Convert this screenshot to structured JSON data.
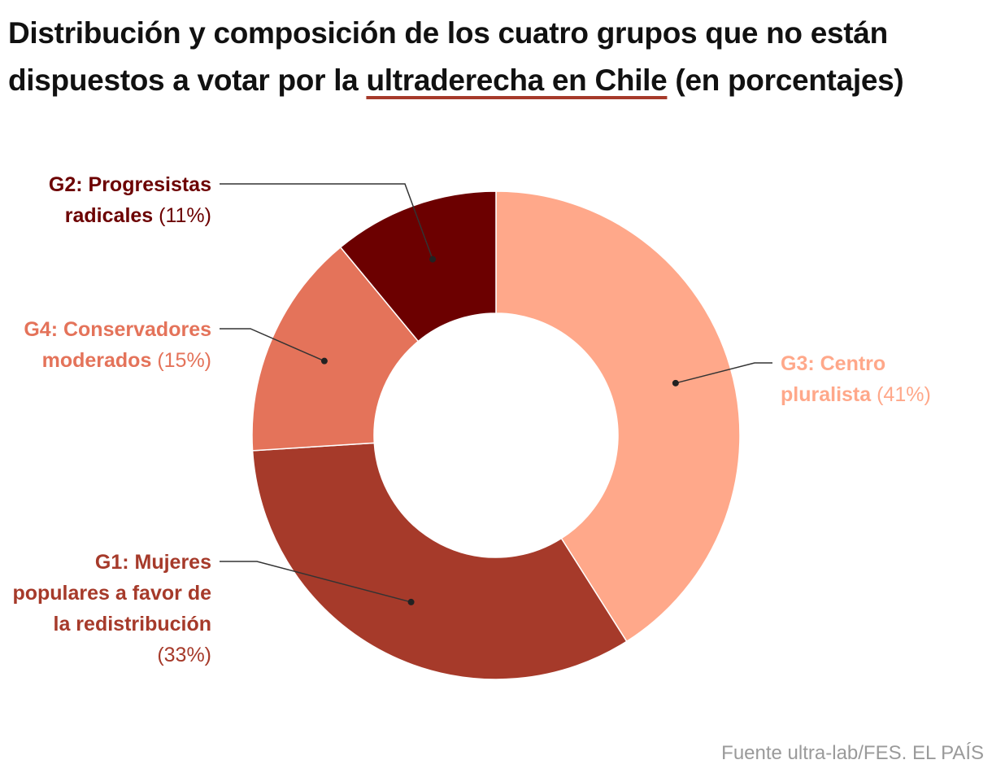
{
  "title": {
    "before": "Distribución y composición de los cuatro grupos que no están dispuestos a votar por la ",
    "highlight": "ultraderecha en Chile",
    "after": " (en porcentajes)"
  },
  "source": "Fuente ultra-lab/FES. EL PAÍS",
  "chart_data": {
    "type": "pie",
    "variant": "donut",
    "unit": "%",
    "slices": [
      {
        "name": "G3: Centro pluralista",
        "value": 41,
        "pct_label": "(41%)",
        "color": "#ffa88a"
      },
      {
        "name": "G1: Mujeres populares a favor de la redistribución",
        "value": 33,
        "pct_label": "(33%)",
        "color": "#a63a2a"
      },
      {
        "name": "G4: Conservadores moderados",
        "value": 15,
        "pct_label": "(15%)",
        "color": "#e4735a"
      },
      {
        "name": "G2: Progresistas radicales",
        "value": 11,
        "pct_label": "(11%)",
        "color": "#6c0000"
      }
    ]
  }
}
